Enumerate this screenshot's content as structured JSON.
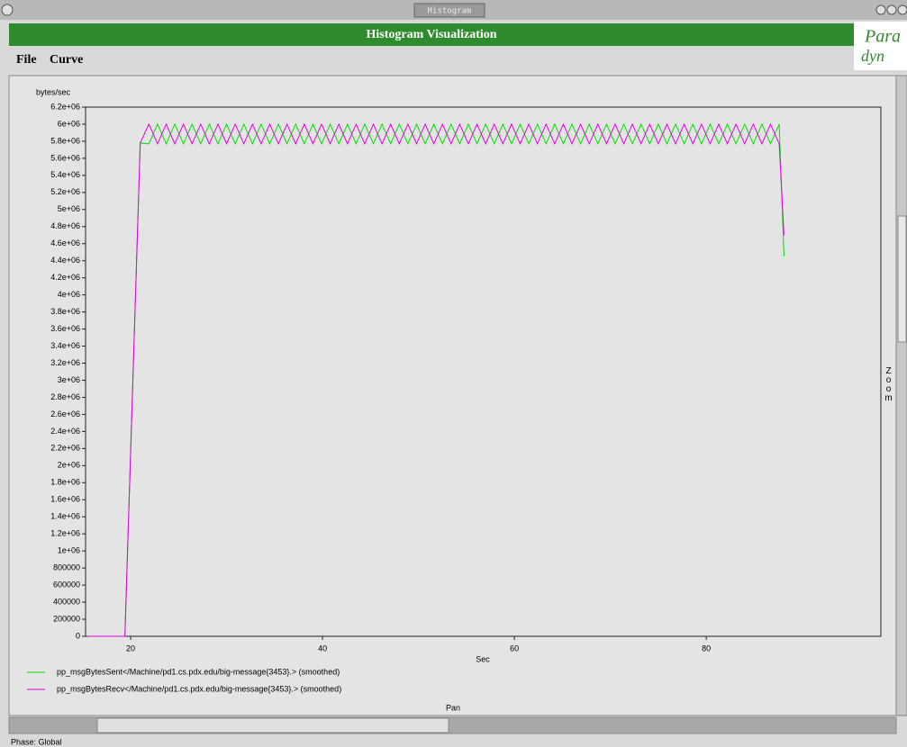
{
  "window": {
    "title": "Histogram"
  },
  "header": {
    "title": "Histogram Visualization",
    "logo_top": "Para",
    "logo_bottom": "dyn"
  },
  "menu": [
    "File",
    "Curve"
  ],
  "zoom_label": "Zoom",
  "pan_label": "Pan",
  "status": "Phase: Global",
  "chart_data": {
    "type": "line",
    "y_label": "bytes/sec",
    "x_label": "Sec",
    "xlim": [
      15.3,
      98.2
    ],
    "xticks": [
      20,
      40,
      60,
      80
    ],
    "ylim": [
      0,
      6200000
    ],
    "yticks": [
      0,
      200000,
      400000,
      600000,
      800000,
      {
        "value": 1000000,
        "label": "1e+06"
      },
      {
        "value": 1200000,
        "label": "1.2e+06"
      },
      {
        "value": 1400000,
        "label": "1.4e+06"
      },
      {
        "value": 1600000,
        "label": "1.6e+06"
      },
      {
        "value": 1800000,
        "label": "1.8e+06"
      },
      {
        "value": 2000000,
        "label": "2e+06"
      },
      {
        "value": 2200000,
        "label": "2.2e+06"
      },
      {
        "value": 2400000,
        "label": "2.4e+06"
      },
      {
        "value": 2600000,
        "label": "2.6e+06"
      },
      {
        "value": 2800000,
        "label": "2.8e+06"
      },
      {
        "value": 3000000,
        "label": "3e+06"
      },
      {
        "value": 3200000,
        "label": "3.2e+06"
      },
      {
        "value": 3400000,
        "label": "3.4e+06"
      },
      {
        "value": 3600000,
        "label": "3.6e+06"
      },
      {
        "value": 3800000,
        "label": "3.8e+06"
      },
      {
        "value": 4000000,
        "label": "4e+06"
      },
      {
        "value": 4200000,
        "label": "4.2e+06"
      },
      {
        "value": 4400000,
        "label": "4.4e+06"
      },
      {
        "value": 4600000,
        "label": "4.6e+06"
      },
      {
        "value": 4800000,
        "label": "4.8e+06"
      },
      {
        "value": 5000000,
        "label": "5e+06"
      },
      {
        "value": 5200000,
        "label": "5.2e+06"
      },
      {
        "value": 5400000,
        "label": "5.4e+06"
      },
      {
        "value": 5600000,
        "label": "5.6e+06"
      },
      {
        "value": 5800000,
        "label": "5.8e+06"
      },
      {
        "value": 6000000,
        "label": "6e+06"
      },
      {
        "value": 6200000,
        "label": "6.2e+06"
      }
    ],
    "x": [
      15.5,
      19.4,
      21.0,
      21.9,
      22.8,
      23.7,
      24.6,
      25.5,
      26.4,
      27.3,
      28.2,
      29.1,
      30.0,
      30.9,
      31.8,
      32.7,
      33.6,
      34.5,
      35.4,
      36.3,
      37.2,
      38.1,
      39.0,
      39.9,
      40.8,
      41.7,
      42.6,
      43.5,
      44.4,
      45.3,
      46.2,
      47.1,
      48.0,
      48.9,
      49.8,
      50.7,
      51.6,
      52.5,
      53.4,
      54.3,
      55.2,
      56.1,
      57.0,
      57.9,
      58.8,
      59.7,
      60.6,
      61.5,
      62.4,
      63.3,
      64.2,
      65.1,
      66.0,
      66.9,
      67.8,
      68.7,
      69.6,
      70.5,
      71.4,
      72.3,
      73.2,
      74.1,
      75.0,
      75.9,
      76.8,
      77.7,
      78.6,
      79.5,
      80.4,
      81.3,
      82.2,
      83.1,
      84.0,
      84.9,
      85.8,
      86.7,
      87.6,
      88.1
    ],
    "series": [
      {
        "name": "pp_msgBytesSent</Machine/pd1.cs.pdx.edu/big-message{3453}.> (smoothed)",
        "color": "#00e000",
        "values": [
          0,
          0,
          5780000,
          5770000,
          6000000,
          5770000,
          6000000,
          5770000,
          6000000,
          5770000,
          6000000,
          5770000,
          6000000,
          5770000,
          6000000,
          5770000,
          6000000,
          5770000,
          6000000,
          5770000,
          6000000,
          5770000,
          6000000,
          5770000,
          6000000,
          5770000,
          6000000,
          5770000,
          6000000,
          5770000,
          6000000,
          5770000,
          6000000,
          5770000,
          6000000,
          5770000,
          6000000,
          5770000,
          6000000,
          5770000,
          6000000,
          5770000,
          6000000,
          5770000,
          6000000,
          5770000,
          6000000,
          5770000,
          6000000,
          5770000,
          6000000,
          5770000,
          6000000,
          5770000,
          6000000,
          5770000,
          6000000,
          5770000,
          6000000,
          5770000,
          6000000,
          5770000,
          6000000,
          5770000,
          6000000,
          5770000,
          6000000,
          5770000,
          6000000,
          5770000,
          6000000,
          5770000,
          6000000,
          5770000,
          6000000,
          5770000,
          6000000,
          4450000
        ]
      },
      {
        "name": "pp_msgBytesRecv</Machine/pd1.cs.pdx.edu/big-message{3453}.> (smoothed)",
        "color": "#e000e0",
        "values": [
          0,
          0,
          5780000,
          6000000,
          5770000,
          6000000,
          5770000,
          6000000,
          5770000,
          6000000,
          5770000,
          6000000,
          5770000,
          6000000,
          5770000,
          6000000,
          5770000,
          6000000,
          5770000,
          6000000,
          5770000,
          6000000,
          5770000,
          6000000,
          5770000,
          6000000,
          5770000,
          6000000,
          5770000,
          6000000,
          5770000,
          6000000,
          5770000,
          6000000,
          5770000,
          6000000,
          5770000,
          6000000,
          5770000,
          6000000,
          5770000,
          6000000,
          5770000,
          6000000,
          5770000,
          6000000,
          5770000,
          6000000,
          5770000,
          6000000,
          5770000,
          6000000,
          5770000,
          6000000,
          5770000,
          6000000,
          5770000,
          6000000,
          5770000,
          6000000,
          5770000,
          6000000,
          5770000,
          6000000,
          5770000,
          6000000,
          5770000,
          6000000,
          5770000,
          6000000,
          5770000,
          6000000,
          5770000,
          6000000,
          5770000,
          6000000,
          5770000,
          4700000
        ]
      }
    ]
  }
}
